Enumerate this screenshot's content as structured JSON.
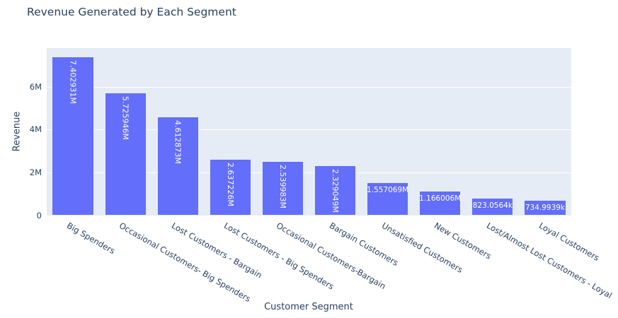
{
  "chart_data": {
    "type": "bar",
    "title": "Revenue Generated by Each Segment",
    "xlabel": "Customer Segment",
    "ylabel": "Revenue",
    "categories": [
      "Big Spenders",
      "Occasional Customers- Big Spenders",
      "Lost Customers - Bargain",
      "Lost Customers - Big Spenders",
      "Occasional Customers-Bargain",
      "Bargain Customers",
      "Unsatisfied Customers",
      "New Customers",
      "Lost/Almost Lost Customers - Loyal",
      "Loyal Customers"
    ],
    "values": [
      7402931,
      5725946,
      4612873,
      2637226,
      2539983,
      2329049,
      1557069,
      1166006,
      823056.4,
      734993.9
    ],
    "value_labels": [
      "7.402931M",
      "5.725946M",
      "4.612873M",
      "2.637226M",
      "2.539983M",
      "2.329049M",
      "1.557069M",
      "1.166006M",
      "823.0564k",
      "734.9939k"
    ],
    "label_orientation": [
      "vertical",
      "vertical",
      "vertical",
      "vertical",
      "vertical",
      "vertical",
      "horizontal",
      "horizontal",
      "horizontal",
      "horizontal"
    ],
    "yticks": [
      0,
      2000000,
      4000000,
      6000000
    ],
    "ytick_labels": [
      "0",
      "2M",
      "4M",
      "6M"
    ],
    "ylim": [
      0,
      7792559
    ],
    "grid": true,
    "legend": false,
    "bar_color": "#636efa",
    "plot_bg": "#e5ecf6"
  }
}
